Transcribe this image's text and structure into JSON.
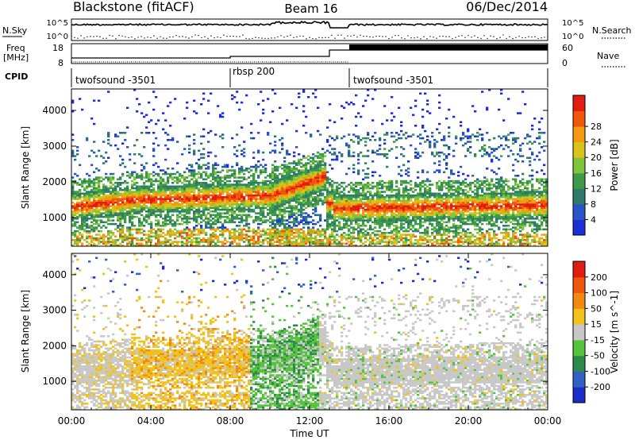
{
  "header": {
    "station": "Blackstone (fitACF)",
    "beam": "Beam 16",
    "date": "06/Dec/2014"
  },
  "top_panels": {
    "nsky_label": "N.Sky",
    "nsearch_label": "N.Search",
    "count_ticks_left": [
      "10^5",
      "10^0"
    ],
    "count_ticks_right": [
      "10^5",
      "10^0"
    ],
    "freq_label_lines": [
      "Freq",
      "[MHz]"
    ],
    "freq_ticks": [
      "18",
      "8"
    ],
    "nave_label": "Nave",
    "nave_ticks": [
      "60",
      "0"
    ],
    "cpid_label": "CPID",
    "cpid_segments": [
      {
        "label": "twofsound -3501",
        "start_hour": 0
      },
      {
        "label": "rbsp 200",
        "start_hour": 8.0
      },
      {
        "label": "twofsound -3501",
        "start_hour": 14.0
      }
    ]
  },
  "time_axis": {
    "label": "Time UT",
    "ticks": [
      "00:00",
      "04:00",
      "08:00",
      "12:00",
      "16:00",
      "20:00",
      "00:00"
    ],
    "range_hours": [
      0,
      24
    ]
  },
  "chart_data": [
    {
      "type": "heatmap",
      "title": "Power",
      "ylabel": "Slant Range [km]",
      "y_ticks": [
        "1000",
        "2000",
        "3000",
        "4000"
      ],
      "ylim": [
        200,
        4600
      ],
      "colorbar_label": "Power [dB]",
      "colorbar_ticks": [
        "4",
        "8",
        "12",
        "16",
        "20",
        "24",
        "28"
      ],
      "colorbar_colors": [
        "#1c2fd6",
        "#2a55c8",
        "#2f7a6a",
        "#3d9b48",
        "#7fc43a",
        "#d9c21c",
        "#f39a12",
        "#f2560d",
        "#e01d10"
      ]
    },
    {
      "type": "heatmap",
      "title": "Velocity",
      "ylabel": "Slant Range [km]",
      "y_ticks": [
        "1000",
        "2000",
        "3000",
        "4000"
      ],
      "ylim": [
        200,
        4600
      ],
      "colorbar_label": "Velocity [m s^-1]",
      "colorbar_ticks": [
        "200",
        "100",
        "50",
        "15",
        "-15",
        "-50",
        "-100",
        "-200"
      ],
      "colorbar_colors": [
        "#1b2cc8",
        "#2f62c4",
        "#2e8a4a",
        "#56c43a",
        "#c8c8c8",
        "#f0c21a",
        "#f28a12",
        "#f0560d",
        "#e01d10"
      ]
    }
  ]
}
